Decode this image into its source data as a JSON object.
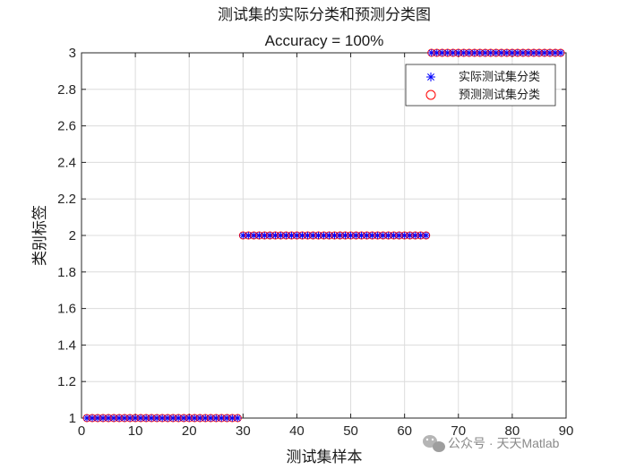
{
  "chart_data": {
    "type": "scatter",
    "title": "测试集的实际分类和预测分类图",
    "subtitle": "Accuracy = 100%",
    "xlabel": "测试集样本",
    "ylabel": "类别标签",
    "xlim": [
      0,
      90
    ],
    "ylim": [
      1,
      3
    ],
    "xticks": [
      "0",
      "10",
      "20",
      "30",
      "40",
      "50",
      "60",
      "70",
      "80",
      "90"
    ],
    "yticks": [
      "1",
      "1.2",
      "1.4",
      "1.6",
      "1.8",
      "2",
      "2.2",
      "2.4",
      "2.6",
      "2.8",
      "3"
    ],
    "grid": true,
    "legend_position": "top-right",
    "segments": [
      {
        "x_start": 1,
        "x_end": 29,
        "y": 1
      },
      {
        "x_start": 30,
        "x_end": 64,
        "y": 2
      },
      {
        "x_start": 65,
        "x_end": 89,
        "y": 3
      }
    ],
    "series": [
      {
        "name": "实际测试集分类",
        "marker": "asterisk",
        "color": "#0000ff"
      },
      {
        "name": "预测测试集分类",
        "marker": "circle",
        "color": "#ff0000"
      }
    ]
  },
  "watermark": {
    "icon": "wechat-icon",
    "text": "公众号 · 天天Matlab"
  }
}
